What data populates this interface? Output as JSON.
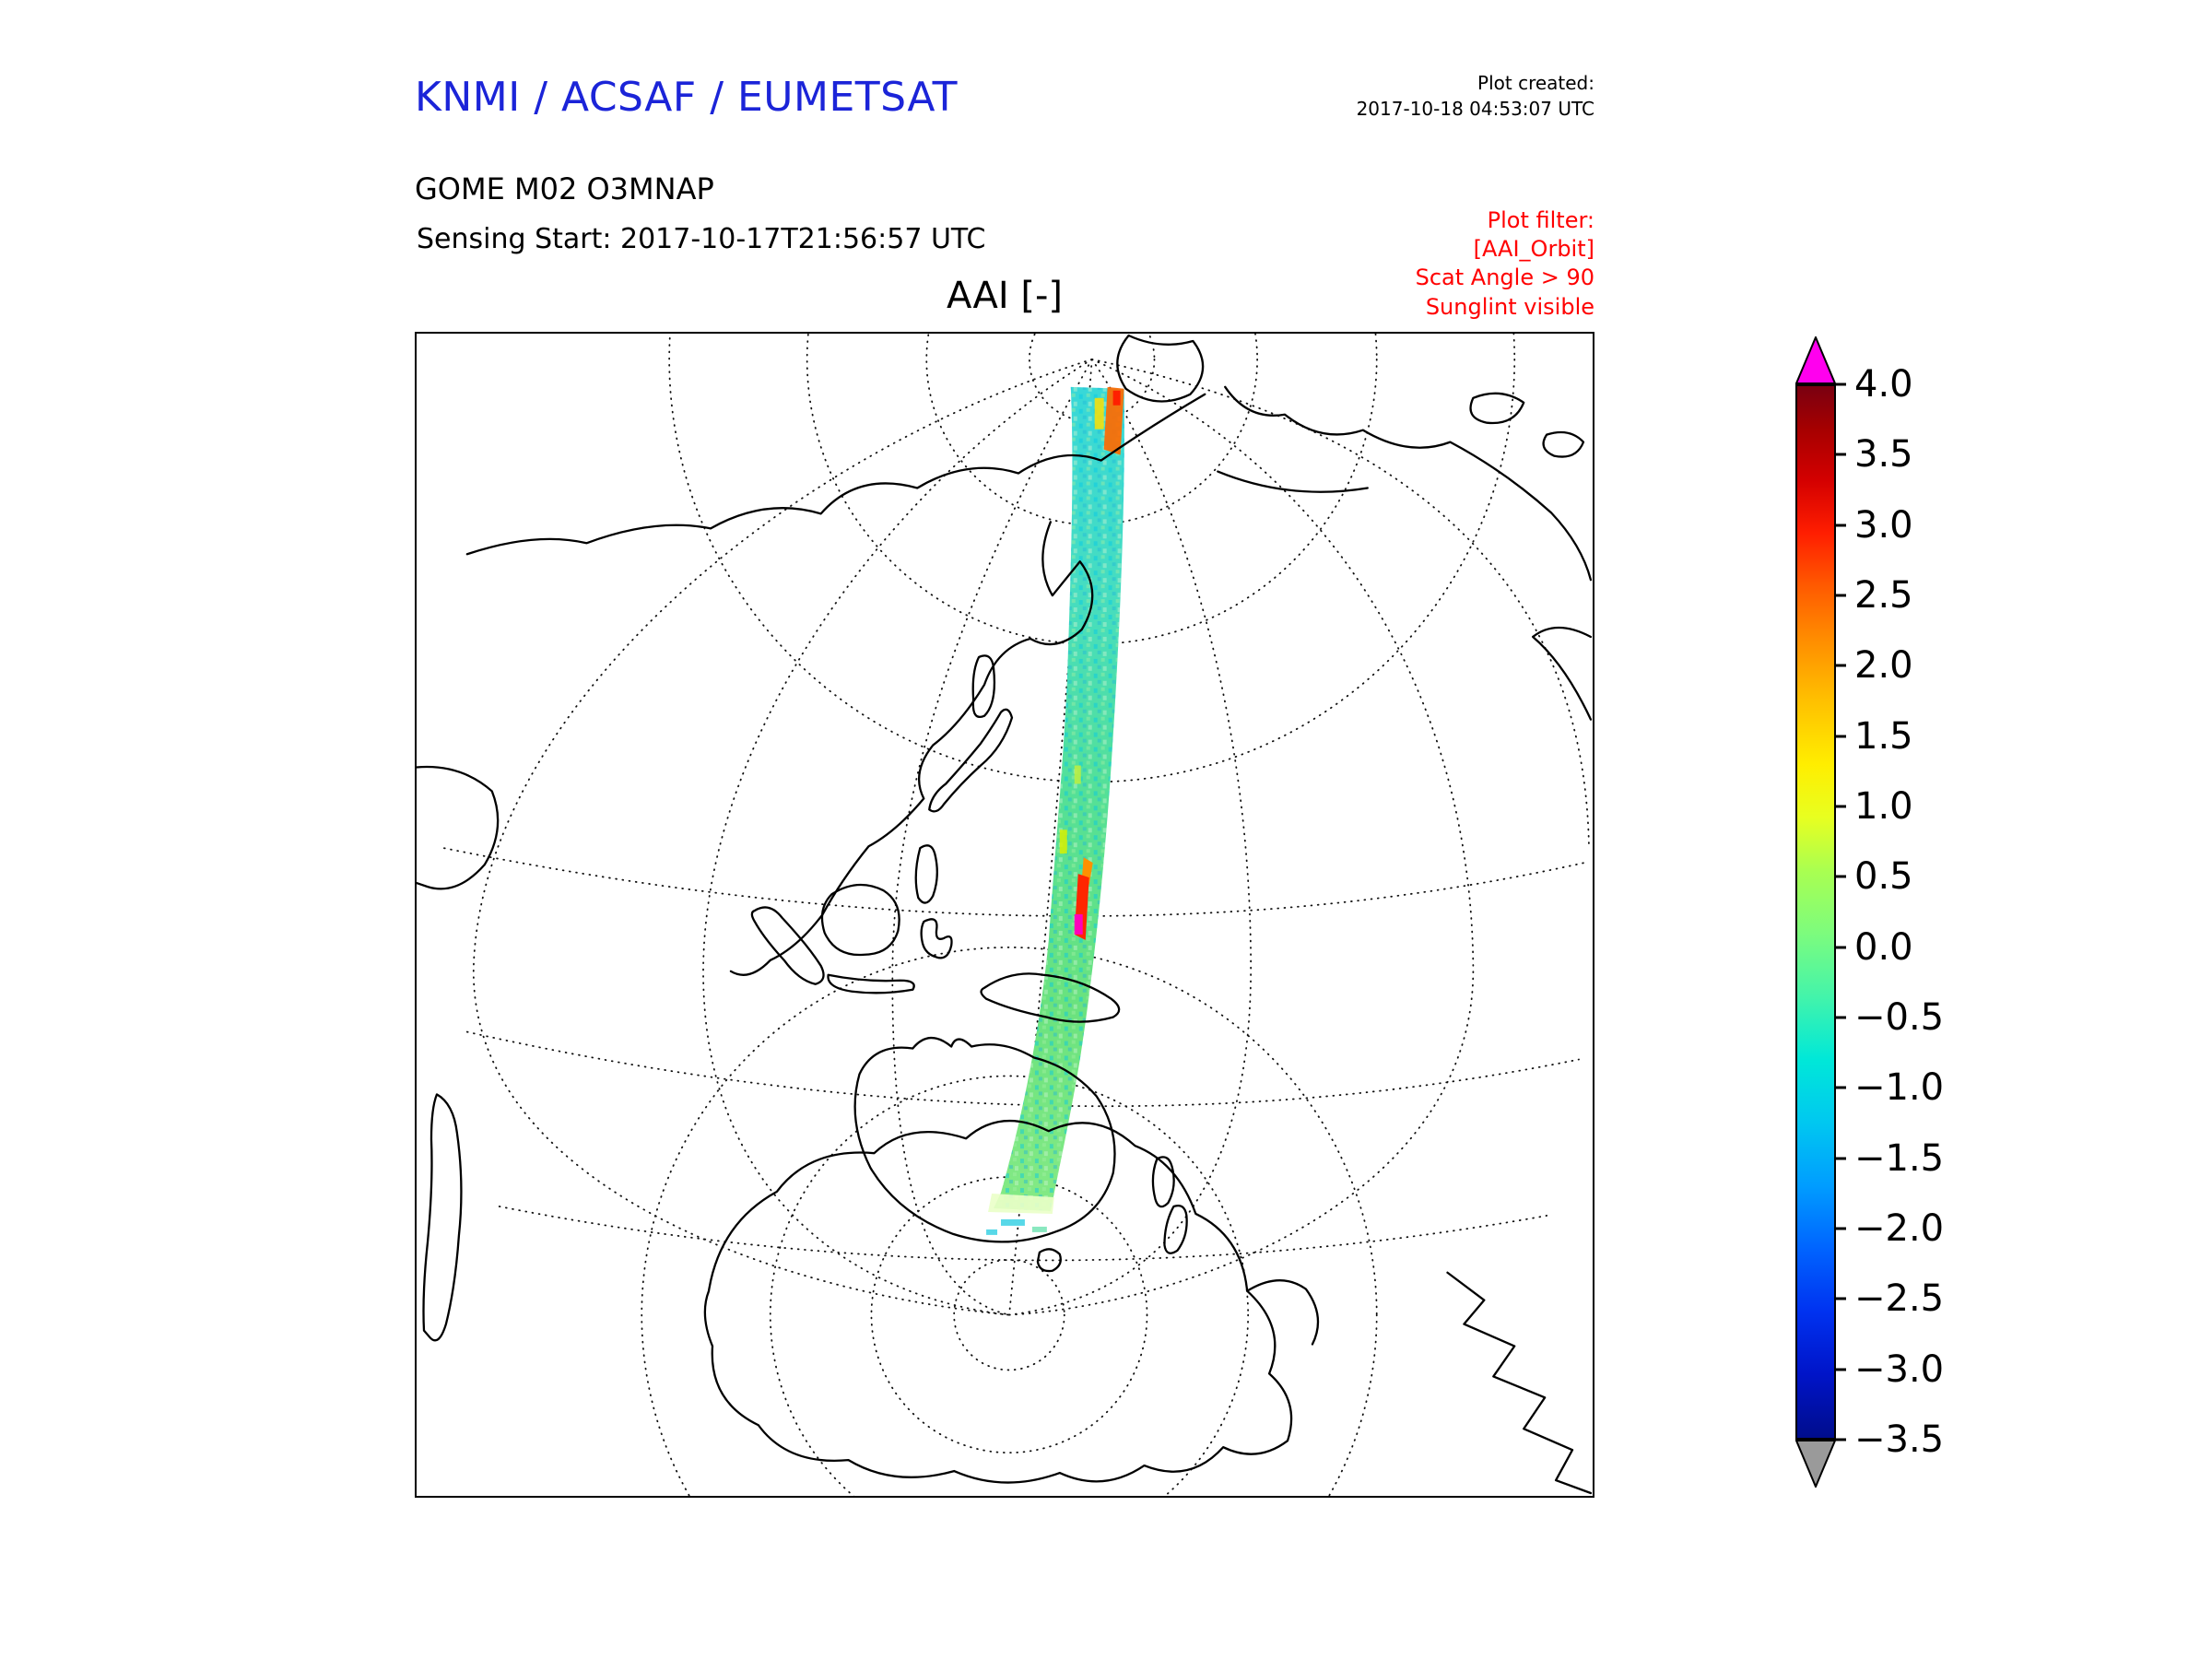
{
  "header": {
    "title": "KNMI / ACSAF / EUMETSAT",
    "title_color": "#1b24d8",
    "plot_created_label": "Plot created:",
    "plot_created_value": "2017-10-18 04:53:07 UTC",
    "product": "GOME M02 O3MNAP",
    "sensing_start": "Sensing Start: 2017-10-17T21:56:57 UTC",
    "filter_color": "#ff0000",
    "filter_lines": [
      "Plot filter:",
      "[AAI_Orbit]",
      "Scat Angle > 90",
      "Sunglint visible"
    ]
  },
  "chart_data": {
    "type": "heatmap",
    "title": "AAI [-]",
    "projection": "orthographic world map, dotted graticule, black coastlines",
    "swath": {
      "description": "Single satellite orbit swath running from the Arctic (top) southward across the western Pacific and eastern Australia down to Antarctica",
      "typical_value_range": [
        -1.5,
        0.5
      ],
      "anomalies": [
        {
          "location": "top (Arctic) end of swath, right edge",
          "approx_value": "2 to 3 (orange/red)"
        },
        {
          "location": "mid swath near equator",
          "approx_value": "3 to above 4 (red streak with magenta saturation)"
        },
        {
          "location": "bottom (Antarctic) end of swath",
          "approx_value": "0.5 to 1 (pale yellow-green band)"
        }
      ]
    },
    "colorbar": {
      "label": "AAI [-]",
      "tick_labels": [
        "4.0",
        "3.5",
        "3.0",
        "2.5",
        "2.0",
        "1.5",
        "1.0",
        "0.5",
        "0.0",
        "−0.5",
        "−1.0",
        "−1.5",
        "−2.0",
        "−2.5",
        "−3.0",
        "−3.5"
      ],
      "tick_values": [
        4.0,
        3.5,
        3.0,
        2.5,
        2.0,
        1.5,
        1.0,
        0.5,
        0.0,
        -0.5,
        -1.0,
        -1.5,
        -2.0,
        -2.5,
        -3.0,
        -3.5
      ],
      "over_color": "#ff00ee",
      "under_color": "#9a9a9a",
      "gradient_stops": [
        "#7a0011 0%",
        "#a50000 4%",
        "#d40000 9%",
        "#ff1e00 14%",
        "#ff5a00 19%",
        "#ff8c00 24%",
        "#ffc100 30%",
        "#ffee00 36%",
        "#e8ff20 41%",
        "#aaff50 46%",
        "#7dfc7d 52%",
        "#44f4aa 58%",
        "#00e8d8 64%",
        "#00c8f0 70%",
        "#009dff 76%",
        "#0064ff 82%",
        "#0032f0 88%",
        "#0014c8 94%",
        "#000d8c 100%"
      ]
    }
  }
}
